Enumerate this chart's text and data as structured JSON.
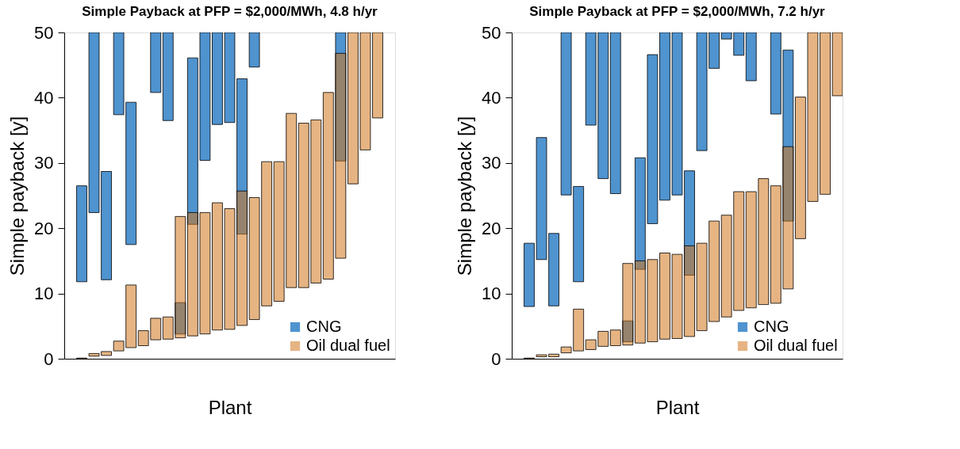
{
  "chart_data": [
    {
      "type": "bar",
      "title": "Simple Payback at PFP = $2,000/MWh, 4.8 h/yr",
      "xlabel": "Plant",
      "ylabel": "Simple payback [y]",
      "categories": [
        null,
        null,
        null,
        null,
        null,
        null,
        null,
        null,
        null,
        null,
        null,
        null,
        null,
        null,
        null,
        null,
        null,
        null,
        null,
        null,
        null,
        null,
        null,
        null,
        null,
        null,
        null
      ],
      "series": [
        {
          "name": "CNG",
          "color": "#4f93cf",
          "base": [
            null,
            11.8,
            22.4,
            12.1,
            37.4,
            17.5,
            null,
            40.8,
            36.5,
            3.8,
            20.6,
            30.4,
            35.9,
            36.2,
            19.1,
            44.7,
            null,
            null,
            null,
            null,
            null,
            null,
            30.3,
            null,
            null,
            null,
            null
          ],
          "values": [
            null,
            14.7,
            27.6,
            16.6,
            12.6,
            21.8,
            null,
            9.2,
            13.5,
            4.8,
            25.5,
            19.6,
            14.1,
            13.8,
            23.8,
            5.3,
            null,
            null,
            null,
            null,
            null,
            null,
            19.7,
            null,
            null,
            null,
            null
          ]
        },
        {
          "name": "Oil dual fuel",
          "color": "#e6b483",
          "base": [
            null,
            0,
            0.4,
            0.5,
            1.2,
            1.7,
            2.0,
            2.9,
            3.0,
            3.2,
            3.5,
            3.8,
            4.4,
            4.5,
            5.1,
            6.0,
            8.1,
            8.8,
            10.9,
            10.9,
            11.6,
            12.2,
            15.4,
            26.8,
            32.0,
            36.9,
            null
          ],
          "values": [
            null,
            0.1,
            0.4,
            0.6,
            1.5,
            9.6,
            2.3,
            3.3,
            3.4,
            18.6,
            18.9,
            18.6,
            19.5,
            18.5,
            20.6,
            18.7,
            22.1,
            21.4,
            26.7,
            25.2,
            25.0,
            28.6,
            31.4,
            23.2,
            18.0,
            13.1,
            null
          ]
        }
      ],
      "ylim": [
        0,
        50
      ],
      "yticks": [
        0,
        10,
        20,
        30,
        40,
        50
      ],
      "grid": false,
      "legend": "bottom right",
      "tick_labels": "y"
    },
    {
      "type": "bar",
      "title": "Simple Payback at PFP = $2,000/MWh, 7.2 h/yr",
      "xlabel": "Plant",
      "ylabel": "Simple payback [y]",
      "categories": [
        null,
        null,
        null,
        null,
        null,
        null,
        null,
        null,
        null,
        null,
        null,
        null,
        null,
        null,
        null,
        null,
        null,
        null,
        null,
        null,
        null,
        null,
        null,
        null,
        null,
        null,
        null
      ],
      "series": [
        {
          "name": "CNG",
          "color": "#4f93cf",
          "base": [
            null,
            8.0,
            15.2,
            8.1,
            25.1,
            11.8,
            35.8,
            27.6,
            25.3,
            2.6,
            13.7,
            20.7,
            24.3,
            25.1,
            12.8,
            31.9,
            44.5,
            49.0,
            46.5,
            42.6,
            null,
            37.5,
            21.1,
            null,
            null,
            null,
            null
          ],
          "values": [
            null,
            9.7,
            18.7,
            11.1,
            24.9,
            14.6,
            14.2,
            22.4,
            24.7,
            3.2,
            17.1,
            25.9,
            25.7,
            24.9,
            16.0,
            18.1,
            5.5,
            1.0,
            3.5,
            7.4,
            null,
            12.5,
            26.2,
            null,
            null,
            null,
            null
          ]
        },
        {
          "name": "Oil dual fuel",
          "color": "#e6b483",
          "base": [
            null,
            0,
            0.3,
            0.3,
            0.9,
            1.2,
            1.4,
            1.9,
            2.0,
            2.1,
            2.4,
            2.6,
            3.0,
            3.1,
            3.4,
            4.3,
            5.7,
            6.4,
            7.4,
            7.8,
            8.3,
            8.5,
            10.7,
            18.4,
            24.1,
            25.2,
            40.3
          ],
          "values": [
            null,
            0.1,
            0.3,
            0.4,
            0.9,
            6.4,
            1.5,
            2.3,
            2.4,
            12.5,
            12.6,
            12.6,
            13.2,
            12.9,
            13.9,
            13.4,
            15.4,
            15.6,
            18.2,
            17.8,
            19.3,
            18.0,
            21.8,
            21.7,
            25.9,
            24.8,
            9.7
          ]
        }
      ],
      "ylim": [
        0,
        50
      ],
      "yticks": [
        0,
        10,
        20,
        30,
        40,
        50
      ],
      "grid": false,
      "legend": "bottom right",
      "tick_labels": "y"
    }
  ]
}
